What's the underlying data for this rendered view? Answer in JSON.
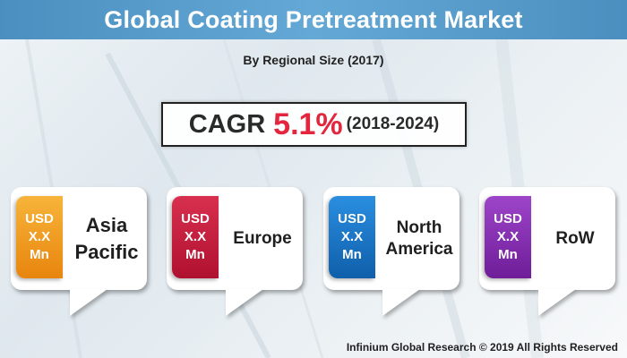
{
  "header": {
    "title": "Global Coating Pretreatment Market",
    "subtitle": "By Regional Size (2017)"
  },
  "cagr": {
    "label": "CAGR",
    "value": "5.1%",
    "period": "(2018-2024)"
  },
  "regions": [
    {
      "name": "Asia Pacific",
      "line1": "USD",
      "line2": "X.X",
      "line3": "Mn",
      "color": "#f39a1b"
    },
    {
      "name": "Europe",
      "line1": "USD",
      "line2": "X.X",
      "line3": "Mn",
      "color": "#c8143a"
    },
    {
      "name": "North America",
      "line1": "USD",
      "line2": "X.X",
      "line3": "Mn",
      "color": "#1874c8"
    },
    {
      "name": "RoW",
      "line1": "USD",
      "line2": "X.X",
      "line3": "Mn",
      "color": "#8a2db5"
    }
  ],
  "footer": {
    "copyright": "Infinium Global Research © 2019 All Rights Reserved"
  }
}
